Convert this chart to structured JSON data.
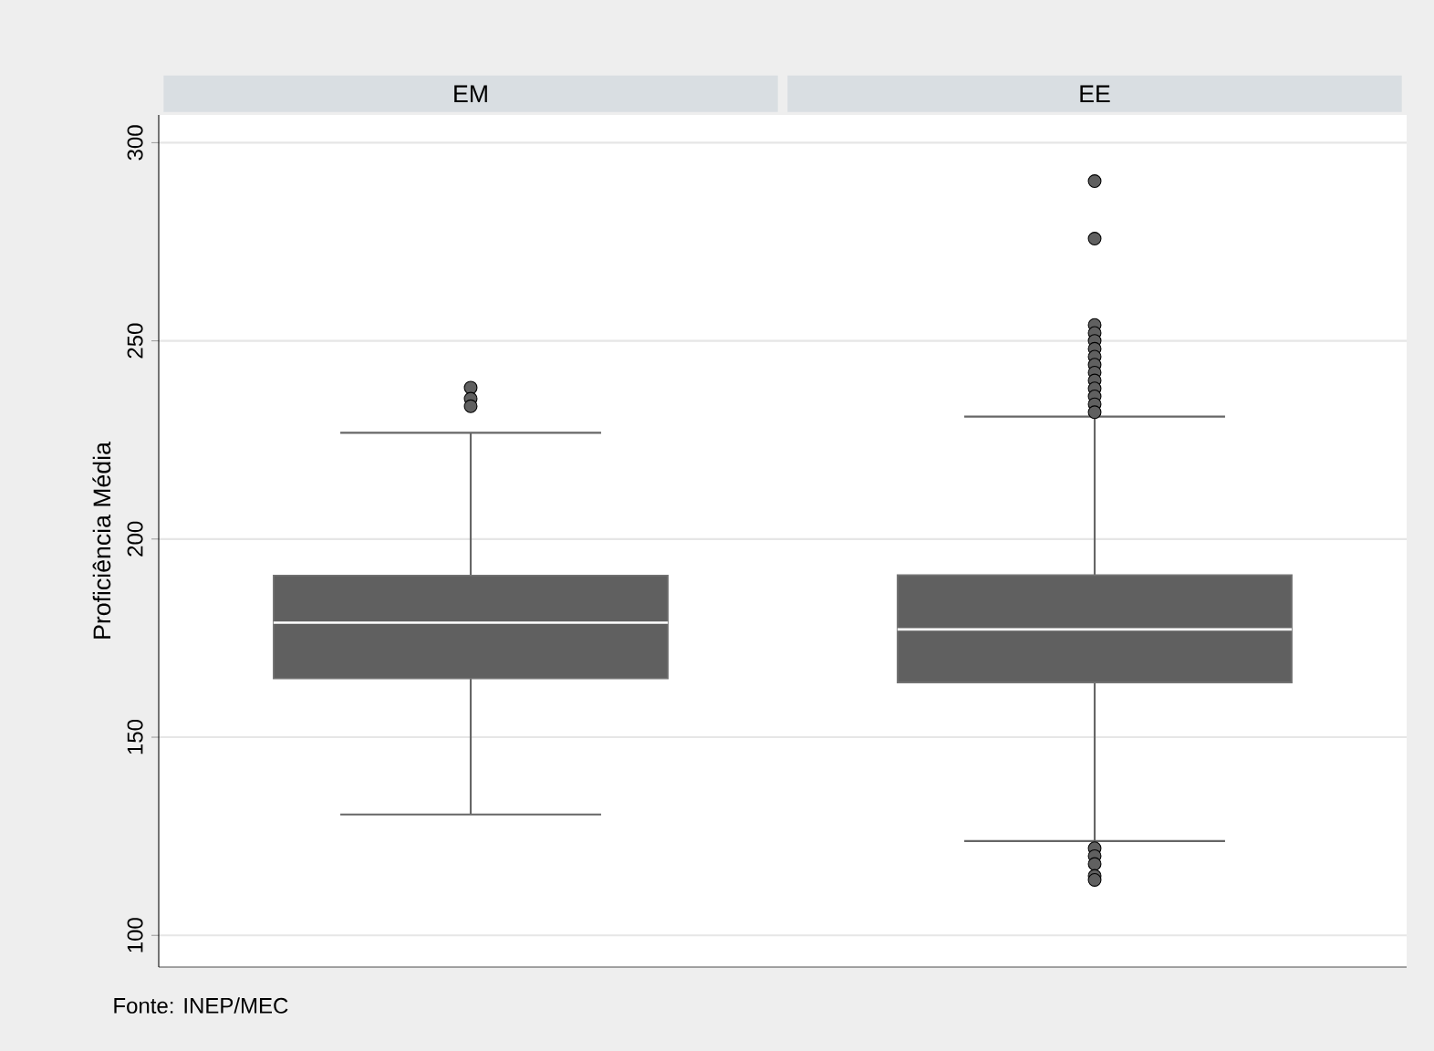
{
  "chart_data": {
    "type": "box",
    "ylabel": "Proficiência Média",
    "categories": [
      "EM",
      "EE"
    ],
    "color": "#606060",
    "boxes": [
      {
        "low": 130.5,
        "q1": 164.8,
        "median": 178.9,
        "q3": 190.8,
        "high": 226.8,
        "outliers": [
          238.2,
          235.4,
          233.5
        ]
      },
      {
        "low": 123.8,
        "q1": 163.8,
        "median": 177.2,
        "q3": 190.9,
        "high": 230.9,
        "outliers": [
          290.3,
          275.8,
          254,
          252,
          250,
          248,
          246,
          244,
          242,
          240,
          238,
          236,
          234,
          232,
          122,
          120,
          118,
          115,
          114
        ]
      }
    ],
    "ylim": [
      92,
      307
    ],
    "yticks": [
      100,
      150,
      200,
      250,
      300
    ],
    "grid": "y",
    "annotations": [
      "Fonte: INEP/MEC"
    ]
  }
}
